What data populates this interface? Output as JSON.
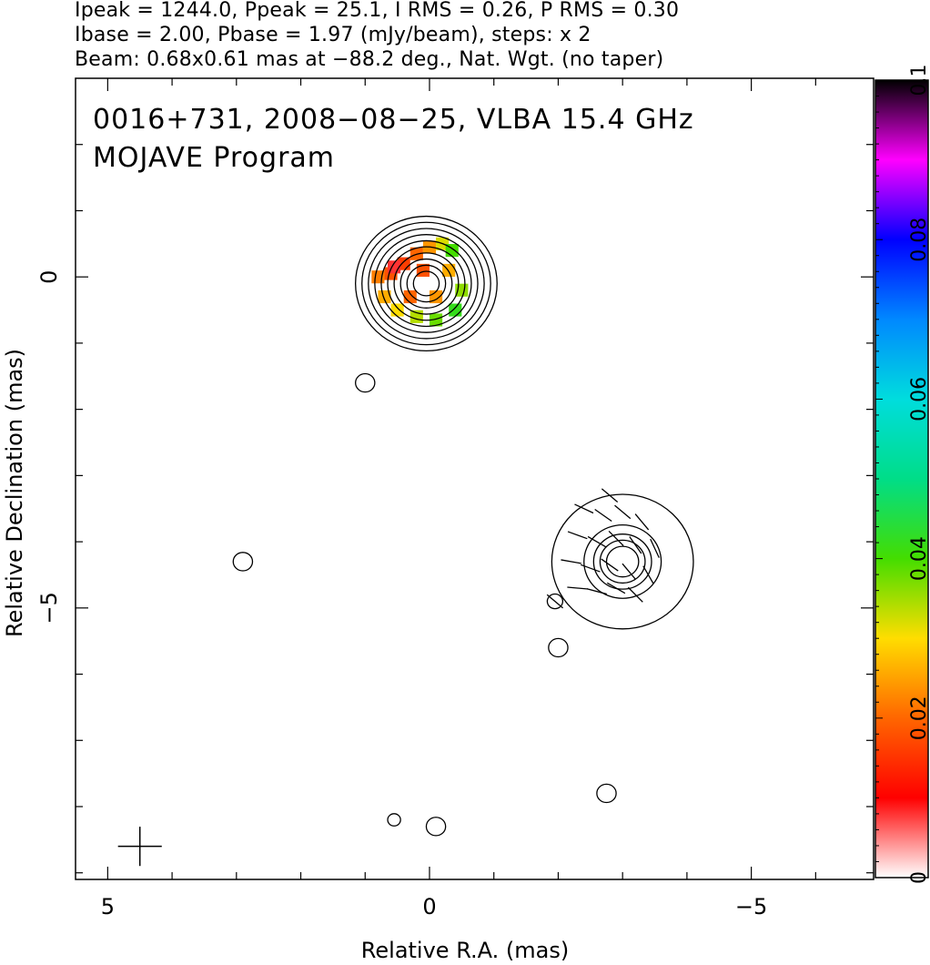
{
  "header": {
    "line1": "Ipeak = 1244.0, Ppeak = 25.1, I RMS = 0.26, P RMS = 0.30",
    "line2": "Ibase = 2.00, Pbase = 1.97 (mJy/beam), steps: x 2",
    "line3": "Beam: 0.68x0.61 mas at −88.2 deg., Nat. Wgt. (no taper)"
  },
  "chart_data": {
    "type": "heatmap",
    "title": "0016+731, 2008−08−25, VLBA 15.4 GHz",
    "subtitle": "MOJAVE Program",
    "xlabel": "Relative R.A. (mas)",
    "ylabel": "Relative Declination (mas)",
    "xlim": [
      5.5,
      -6.9
    ],
    "ylim": [
      -9.1,
      3.0
    ],
    "x_ticks": [
      {
        "value": 5,
        "label": "5"
      },
      {
        "value": 0,
        "label": "0"
      },
      {
        "value": -5,
        "label": "−5"
      }
    ],
    "y_ticks": [
      {
        "value": 0,
        "label": "0"
      },
      {
        "value": -5,
        "label": "−5"
      }
    ],
    "colorbar": {
      "min": 0,
      "max": 0.1,
      "ticks": [
        {
          "value": 0,
          "label": "0"
        },
        {
          "value": 0.02,
          "label": "0.02"
        },
        {
          "value": 0.04,
          "label": "0.04"
        },
        {
          "value": 0.06,
          "label": "0.06"
        },
        {
          "value": 0.08,
          "label": "0.08"
        },
        {
          "value": 0.1,
          "label": "0.1"
        }
      ]
    },
    "contour_components": [
      {
        "x": 0.05,
        "y": -0.1,
        "levels": [
          1.1,
          1.0,
          0.9,
          0.8,
          0.7,
          0.6,
          0.5,
          0.4,
          0.3,
          0.2
        ]
      },
      {
        "x": -3.0,
        "y": -4.3,
        "levels": [
          1.1,
          0.6,
          0.45,
          0.35,
          0.25
        ]
      },
      {
        "x": 1.0,
        "y": -1.6,
        "levels": [
          0.15
        ]
      },
      {
        "x": 2.9,
        "y": -4.3,
        "levels": [
          0.15
        ]
      },
      {
        "x": -1.95,
        "y": -4.9,
        "levels": [
          0.12
        ]
      },
      {
        "x": -2.0,
        "y": -5.6,
        "levels": [
          0.15
        ]
      },
      {
        "x": -2.75,
        "y": -7.8,
        "levels": [
          0.15
        ]
      },
      {
        "x": -0.1,
        "y": -8.3,
        "levels": [
          0.15
        ]
      },
      {
        "x": 0.55,
        "y": -8.2,
        "levels": [
          0.1
        ]
      }
    ],
    "fractional_pol_pixels": [
      {
        "x": 0.6,
        "y": 0.05,
        "value": 0.018
      },
      {
        "x": 0.4,
        "y": 0.2,
        "value": 0.016
      },
      {
        "x": 0.2,
        "y": 0.35,
        "value": 0.02
      },
      {
        "x": 0.0,
        "y": 0.45,
        "value": 0.024
      },
      {
        "x": -0.2,
        "y": 0.5,
        "value": 0.032
      },
      {
        "x": -0.35,
        "y": 0.4,
        "value": 0.04
      },
      {
        "x": 0.7,
        "y": -0.3,
        "value": 0.026
      },
      {
        "x": 0.5,
        "y": -0.5,
        "value": 0.03
      },
      {
        "x": 0.2,
        "y": -0.6,
        "value": 0.034
      },
      {
        "x": -0.1,
        "y": -0.65,
        "value": 0.038
      },
      {
        "x": -0.4,
        "y": -0.5,
        "value": 0.042
      },
      {
        "x": -0.5,
        "y": -0.2,
        "value": 0.036
      },
      {
        "x": 0.8,
        "y": 0.0,
        "value": 0.022
      },
      {
        "x": 0.3,
        "y": -0.3,
        "value": 0.02
      },
      {
        "x": 0.1,
        "y": 0.1,
        "value": 0.018
      },
      {
        "x": -0.1,
        "y": -0.3,
        "value": 0.024
      },
      {
        "x": -0.3,
        "y": 0.1,
        "value": 0.026
      },
      {
        "x": 0.55,
        "y": 0.15,
        "value": 0.008
      }
    ],
    "ev_vectors": [
      {
        "x": -2.4,
        "y": -3.5,
        "angle": 65
      },
      {
        "x": -2.7,
        "y": -3.6,
        "angle": 55
      },
      {
        "x": -3.0,
        "y": -3.55,
        "angle": 50
      },
      {
        "x": -3.3,
        "y": -3.7,
        "angle": 40
      },
      {
        "x": -2.3,
        "y": -3.9,
        "angle": 70
      },
      {
        "x": -2.6,
        "y": -4.0,
        "angle": 60
      },
      {
        "x": -2.9,
        "y": -3.95,
        "angle": 45
      },
      {
        "x": -3.2,
        "y": -4.05,
        "angle": 35
      },
      {
        "x": -3.5,
        "y": -4.1,
        "angle": 25
      },
      {
        "x": -2.2,
        "y": -4.3,
        "angle": 80
      },
      {
        "x": -2.5,
        "y": -4.4,
        "angle": 70
      },
      {
        "x": -2.8,
        "y": -4.35,
        "angle": 55
      },
      {
        "x": -3.1,
        "y": -4.45,
        "angle": 40
      },
      {
        "x": -3.4,
        "y": -4.5,
        "angle": 30
      },
      {
        "x": -2.3,
        "y": -4.7,
        "angle": 85
      },
      {
        "x": -2.6,
        "y": -4.75,
        "angle": 75
      },
      {
        "x": -2.9,
        "y": -4.7,
        "angle": 60
      },
      {
        "x": -3.2,
        "y": -4.8,
        "angle": 45
      },
      {
        "x": -2.8,
        "y": -3.3,
        "angle": 50
      },
      {
        "x": -1.95,
        "y": -4.9,
        "angle": 50
      }
    ],
    "beam": {
      "x": 4.5,
      "y": -8.6,
      "major": 0.68,
      "minor": 0.61,
      "angle_deg": -88.2
    }
  }
}
